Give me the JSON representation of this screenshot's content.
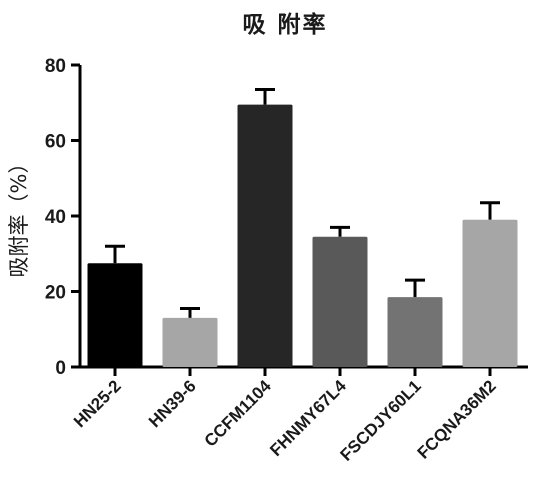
{
  "chart_data": {
    "type": "bar",
    "title": "吸 附率",
    "xlabel": "",
    "ylabel": "吸附率（%）",
    "categories": [
      "HN25-2",
      "HN39-6",
      "CCFM1104",
      "FHNMY67L4",
      "FSCDJY60L1",
      "FCQNA36M2"
    ],
    "values": [
      27.5,
      13,
      69.5,
      34.5,
      18.5,
      39
    ],
    "errors": [
      4.5,
      2.5,
      4,
      2.5,
      4.5,
      4.5
    ],
    "colors": [
      "#000000",
      "#a6a6a6",
      "#262626",
      "#595959",
      "#737373",
      "#a6a6a6"
    ],
    "ylim": [
      0,
      80
    ],
    "yticks": [
      "0",
      "20",
      "40",
      "60",
      "80"
    ],
    "grid": false,
    "legend": "none"
  }
}
